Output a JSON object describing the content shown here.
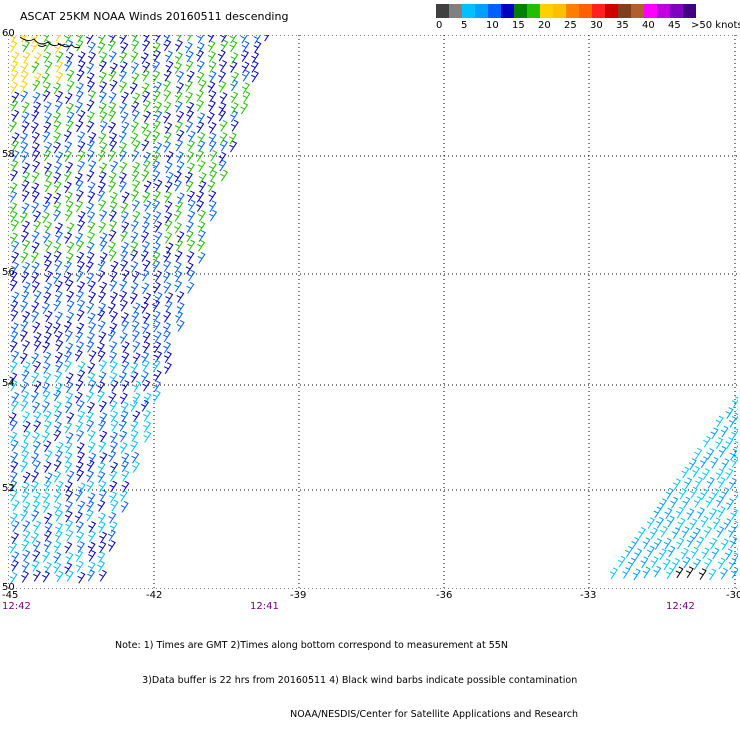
{
  "title": "ASCAT 25KM NOAA Winds 20160511 descending",
  "legend": {
    "colors": [
      "#404040",
      "#808080",
      "#00c0ff",
      "#00a0ff",
      "#0060ff",
      "#0000c0",
      "#008000",
      "#20c000",
      "#ffd000",
      "#ffc000",
      "#ff8000",
      "#ff6000",
      "#ff2020",
      "#d00000",
      "#804020",
      "#b06030",
      "#ff00ff",
      "#c000e0",
      "#8000c0",
      "#400080"
    ],
    "labels": [
      "0",
      "5",
      "10",
      "15",
      "20",
      "25",
      "30",
      "35",
      "40",
      "45",
      ">50 knots"
    ],
    "label_offsets": [
      0,
      25,
      50,
      76,
      102,
      128,
      154,
      180,
      206,
      232,
      255
    ]
  },
  "lat_labels": [
    "60",
    "58",
    "56",
    "54",
    "52",
    "50"
  ],
  "lon_labels": [
    "-45",
    "-42",
    "-39",
    "-36",
    "-33",
    "-30"
  ],
  "time_labels": [
    "12:42",
    "12:41",
    "12:42"
  ],
  "note_lines": [
    "Note: 1) Times are GMT 2)Times along bottom correspond to measurement at 55N",
    "         3)Data buffer is 22 hrs from 20160511 4) Black wind barbs indicate possible contamination",
    "                                                          NOAA/NESDIS/Center for Satellite Applications and Research"
  ]
}
